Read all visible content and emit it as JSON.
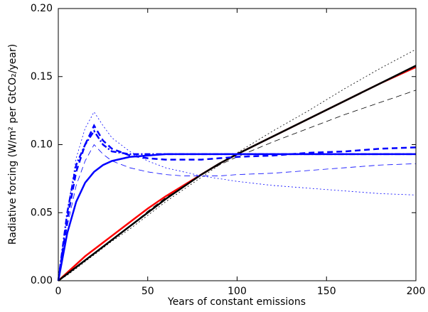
{
  "chart_data": {
    "type": "line",
    "xlabel": "Years of constant emissions",
    "ylabel": "Radiative forcing (W/m² per GtCO₂/year)",
    "x": [
      0,
      5,
      10,
      15,
      20,
      25,
      30,
      40,
      50,
      60,
      70,
      80,
      90,
      100,
      120,
      140,
      160,
      180,
      200
    ],
    "series": [
      {
        "color": "#000000",
        "dash": "dashed",
        "linewidth": 0.8,
        "values": [
          0,
          0.005,
          0.01,
          0.015,
          0.02,
          0.025,
          0.03,
          0.04,
          0.051,
          0.061,
          0.07,
          0.078,
          0.085,
          0.091,
          0.102,
          0.112,
          0.122,
          0.131,
          0.14
        ]
      },
      {
        "color": "#000000",
        "dash": "dotted",
        "linewidth": 0.8,
        "values": [
          0,
          0.004,
          0.009,
          0.014,
          0.019,
          0.024,
          0.029,
          0.038,
          0.048,
          0.058,
          0.067,
          0.076,
          0.085,
          0.094,
          0.11,
          0.125,
          0.141,
          0.156,
          0.17
        ]
      },
      {
        "color": "#ff0000",
        "dash": "solid",
        "linewidth": 2.5,
        "values": [
          0,
          0.006,
          0.012,
          0.018,
          0.023,
          0.028,
          0.033,
          0.043,
          0.053,
          0.062,
          0.07,
          0.078,
          0.086,
          0.093,
          0.106,
          0.119,
          0.132,
          0.145,
          0.157
        ]
      },
      {
        "color": "#000000",
        "dash": "solid",
        "linewidth": 2.5,
        "values": [
          0,
          0.005,
          0.01,
          0.015,
          0.02,
          0.025,
          0.03,
          0.04,
          0.05,
          0.06,
          0.069,
          0.078,
          0.086,
          0.093,
          0.106,
          0.119,
          0.132,
          0.145,
          0.158
        ]
      },
      {
        "color": "#0000ff",
        "dash": "dashed",
        "linewidth": 0.8,
        "values": [
          0,
          0.04,
          0.07,
          0.088,
          0.1,
          0.093,
          0.088,
          0.083,
          0.08,
          0.078,
          0.077,
          0.077,
          0.077,
          0.078,
          0.079,
          0.081,
          0.083,
          0.085,
          0.086
        ]
      },
      {
        "color": "#0000ff",
        "dash": "dotted",
        "linewidth": 0.8,
        "values": [
          0,
          0.05,
          0.09,
          0.112,
          0.124,
          0.114,
          0.105,
          0.095,
          0.088,
          0.083,
          0.08,
          0.077,
          0.075,
          0.073,
          0.07,
          0.068,
          0.066,
          0.064,
          0.063
        ]
      },
      {
        "color": "#0000ff",
        "dash": "dashdot",
        "linewidth": 2.5,
        "values": [
          0,
          0.05,
          0.085,
          0.1,
          0.11,
          0.1,
          0.095,
          0.093,
          0.093,
          0.093,
          0.093,
          0.093,
          0.093,
          0.093,
          0.093,
          0.093,
          0.093,
          0.093,
          0.093
        ]
      },
      {
        "color": "#0000ff",
        "dash": "dashed",
        "linewidth": 2.5,
        "values": [
          0,
          0.045,
          0.08,
          0.1,
          0.114,
          0.103,
          0.097,
          0.092,
          0.09,
          0.089,
          0.089,
          0.089,
          0.09,
          0.091,
          0.092,
          0.094,
          0.095,
          0.097,
          0.098
        ]
      },
      {
        "color": "#0000ff",
        "dash": "solid",
        "linewidth": 2.5,
        "values": [
          0,
          0.035,
          0.058,
          0.072,
          0.08,
          0.085,
          0.088,
          0.091,
          0.092,
          0.093,
          0.093,
          0.093,
          0.093,
          0.093,
          0.093,
          0.093,
          0.093,
          0.093,
          0.093
        ]
      }
    ],
    "xlim": [
      0,
      200
    ],
    "xticks": [
      0,
      50,
      100,
      150,
      200
    ],
    "ylim": [
      0,
      0.2
    ],
    "yticks": [
      {
        "value": 0,
        "label": "0.00"
      },
      0.05,
      {
        "value": 0.1,
        "label": "0.10"
      },
      0.15,
      {
        "value": 0.2,
        "label": "0.20"
      }
    ]
  }
}
